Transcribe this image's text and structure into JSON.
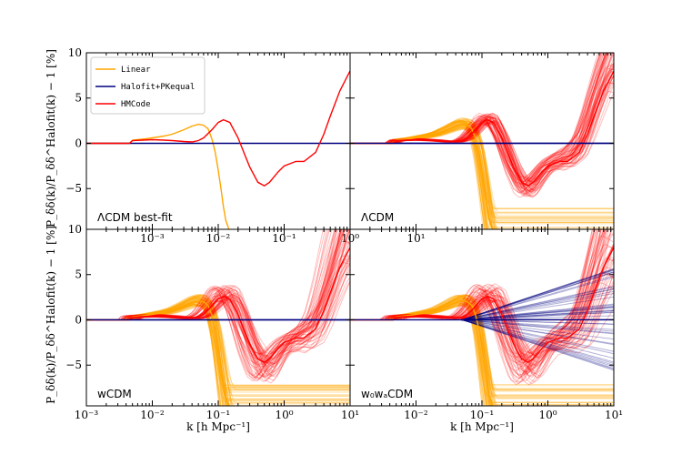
{
  "figure": {
    "ylabel": "P_δδ(k)/P_δδ^Halofit(k) − 1 [%]",
    "xlabel": "k [h Mpc⁻¹]"
  },
  "colors": {
    "linear": "#ffa500",
    "halofit": "#000080",
    "hmcode": "#ff0000"
  },
  "chart_data": [
    {
      "type": "line",
      "panel_label": "ΛCDM best-fit",
      "xscale": "log",
      "xlim": [
        0.001,
        10
      ],
      "ylim": [
        -9.5,
        10
      ],
      "yticks": [
        -5,
        0,
        5,
        10
      ],
      "xticks": [
        "10⁻³",
        "10⁻²",
        "10⁻¹",
        "10⁰",
        "10¹"
      ],
      "legend": {
        "position": "top-left",
        "entries": [
          "Linear",
          "Halofit+PKequal",
          "HMCode"
        ]
      },
      "series": [
        {
          "name": "Linear",
          "color": "#ffa500",
          "x": [
            0.001,
            0.0045,
            0.005,
            0.006,
            0.008,
            0.01,
            0.015,
            0.02,
            0.03,
            0.04,
            0.05,
            0.06,
            0.07,
            0.08,
            0.09,
            0.1,
            0.11,
            0.12,
            0.13,
            0.145
          ],
          "y": [
            0,
            0,
            0.35,
            0.4,
            0.5,
            0.6,
            0.8,
            1.0,
            1.5,
            1.9,
            2.1,
            2.0,
            1.6,
            0.5,
            -1.0,
            -3.0,
            -5.0,
            -7.0,
            -8.5,
            -9.5
          ]
        },
        {
          "name": "Halofit+PKequal",
          "color": "#000080",
          "x": [
            0.001,
            10
          ],
          "y": [
            0,
            0
          ]
        },
        {
          "name": "HMCode",
          "color": "#ff0000",
          "x": [
            0.001,
            0.0045,
            0.005,
            0.007,
            0.01,
            0.015,
            0.02,
            0.03,
            0.04,
            0.05,
            0.06,
            0.08,
            0.1,
            0.12,
            0.15,
            0.2,
            0.25,
            0.3,
            0.4,
            0.5,
            0.6,
            0.8,
            1.0,
            1.5,
            2.0,
            3.0,
            4.0,
            5.0,
            7.0,
            10.0
          ],
          "y": [
            0,
            0,
            0.3,
            0.35,
            0.4,
            0.35,
            0.3,
            0.2,
            0.15,
            0.3,
            0.6,
            1.5,
            2.3,
            2.6,
            2.3,
            0.6,
            -1.2,
            -2.6,
            -4.3,
            -4.7,
            -4.3,
            -3.2,
            -2.5,
            -2.0,
            -2.0,
            -1.0,
            1.0,
            3.0,
            5.8,
            8.0
          ]
        }
      ]
    },
    {
      "type": "line",
      "panel_label": "ΛCDM",
      "xscale": "log",
      "xlim": [
        0.001,
        10
      ],
      "ylim": [
        -9.5,
        10
      ],
      "yticks": [
        -5,
        0,
        5,
        10
      ],
      "xticks": [],
      "bundles": [
        {
          "name": "Linear",
          "color": "#ffa500",
          "count": 60,
          "spread": 1.0
        },
        {
          "name": "HMCode",
          "color": "#ff0000",
          "count": 60,
          "spread": 1.0
        }
      ],
      "series": [
        {
          "name": "Halofit+PKequal",
          "color": "#000080",
          "x": [
            0.001,
            10
          ],
          "y": [
            0,
            0
          ]
        }
      ]
    },
    {
      "type": "line",
      "panel_label": "wCDM",
      "xscale": "log",
      "xlim": [
        0.001,
        10
      ],
      "ylim": [
        -9.5,
        10
      ],
      "yticks": [
        -5,
        0,
        5,
        10
      ],
      "xticks": [
        "10⁻³",
        "10⁻²",
        "10⁻¹",
        "10⁰",
        "10¹"
      ],
      "bundles": [
        {
          "name": "Linear",
          "color": "#ffa500",
          "count": 60,
          "spread": 1.0
        },
        {
          "name": "HMCode",
          "color": "#ff0000",
          "count": 60,
          "spread": 1.4
        }
      ],
      "series": [
        {
          "name": "Halofit+PKequal",
          "color": "#000080",
          "x": [
            0.001,
            10
          ],
          "y": [
            0,
            0
          ]
        }
      ]
    },
    {
      "type": "line",
      "panel_label": "w₀wₐCDM",
      "xscale": "log",
      "xlim": [
        0.001,
        10
      ],
      "ylim": [
        -9.5,
        10
      ],
      "yticks": [
        -5,
        0,
        5,
        10
      ],
      "xticks": [
        "10⁻²",
        "10⁻¹",
        "10⁰",
        "10¹"
      ],
      "bundles": [
        {
          "name": "Linear",
          "color": "#ffa500",
          "count": 60,
          "spread": 1.0
        },
        {
          "name": "HMCode",
          "color": "#ff0000",
          "count": 60,
          "spread": 1.6
        },
        {
          "name": "Halofit+PKequal",
          "color": "#000080",
          "count": 50,
          "spread": 1.0
        }
      ],
      "series": []
    }
  ]
}
